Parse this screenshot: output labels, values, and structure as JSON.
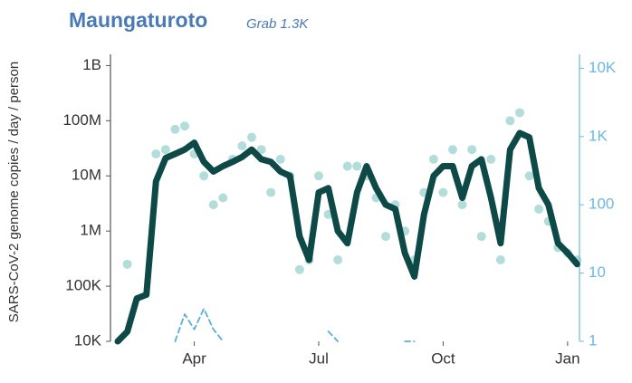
{
  "chart_data": {
    "type": "line",
    "title": "Maungaturoto",
    "subtitle": "Grab 1.3K",
    "ylabel": "SARS-CoV-2 genome copies  / day / person",
    "categories": [
      null,
      null,
      null,
      null,
      null,
      null,
      null,
      null,
      "Apr",
      null,
      null,
      null,
      null,
      null,
      null,
      null,
      null,
      null,
      null,
      null,
      null,
      "Jul",
      null,
      null,
      null,
      null,
      null,
      null,
      null,
      null,
      null,
      null,
      null,
      null,
      "Oct",
      null,
      null,
      null,
      null,
      null,
      null,
      null,
      null,
      null,
      null,
      null,
      null,
      "Jan",
      null
    ],
    "ylog": true,
    "ylim": [
      10000,
      1600000000
    ],
    "yticks": [
      {
        "value": 10000,
        "label": "10K"
      },
      {
        "value": 100000,
        "label": "100K"
      },
      {
        "value": 1000000,
        "label": "1M"
      },
      {
        "value": 10000000,
        "label": "10M"
      },
      {
        "value": 100000000,
        "label": "100M"
      },
      {
        "value": 1000000000,
        "label": "1B"
      }
    ],
    "y2lim": [
      1,
      16000
    ],
    "y2ticks": [
      1,
      10,
      100,
      {
        "value": 1000,
        "label": "1K"
      },
      {
        "value": 10000,
        "label": "10K"
      }
    ],
    "series": [
      {
        "type": "scatter",
        "color": "#7ec6c2",
        "values": [
          null,
          250000,
          null,
          null,
          25000000,
          30000000,
          70000000,
          80000000,
          25000000,
          10000000,
          3000000,
          4000000,
          20000000,
          35000000,
          50000000,
          30000000,
          5000000,
          20000000,
          10000000,
          200000,
          300000,
          10000000,
          2000000,
          300000,
          15000000,
          15000000,
          10000000,
          4000000,
          800000,
          3000000,
          1000000,
          300000,
          5000000,
          20000000,
          5000000,
          30000000,
          3000000,
          30000000,
          800000,
          20000000,
          300000,
          100000000,
          140000000,
          10000000,
          2500000,
          1500000,
          500000,
          400000,
          300000
        ]
      },
      {
        "type": "line",
        "color": "#0d4a47",
        "values": [
          10000,
          15000,
          60000,
          70000,
          8000000,
          21000000,
          25000000,
          30000000,
          40000000,
          18000000,
          12000000,
          15000000,
          18000000,
          22000000,
          30000000,
          20000000,
          18000000,
          12000000,
          10000000,
          800000,
          300000,
          5000000,
          6000000,
          1000000,
          600000,
          5000000,
          15000000,
          6000000,
          3000000,
          2500000,
          400000,
          150000,
          2000000,
          10000000,
          15000000,
          15000000,
          4000000,
          15000000,
          20000000,
          4000000,
          600000,
          30000000,
          60000000,
          50000000,
          6000000,
          3000000,
          600000,
          400000,
          250000
        ]
      },
      {
        "type": "line",
        "axis": "y2",
        "dashed": true,
        "color": "#5aaed8",
        "values": [
          null,
          null,
          null,
          null,
          null,
          null,
          1,
          2.5,
          1.5,
          3,
          1.5,
          1,
          null,
          null,
          null,
          null,
          null,
          null,
          null,
          null,
          null,
          null,
          1.4,
          1,
          null,
          null,
          null,
          null,
          null,
          null,
          1,
          1,
          null,
          null,
          null,
          null,
          null,
          null,
          null,
          null,
          null,
          null,
          null,
          null,
          null,
          null,
          null,
          null,
          null
        ]
      }
    ]
  }
}
